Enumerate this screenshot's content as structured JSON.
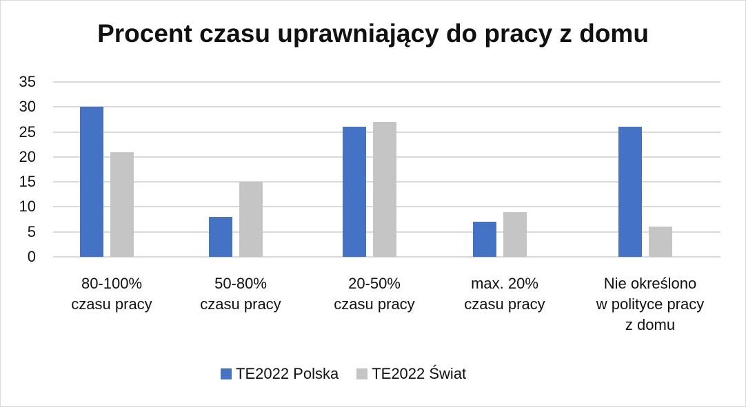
{
  "chart_data": {
    "type": "bar",
    "title": "Procent czasu uprawniający do pracy z domu",
    "categories": [
      [
        "80-100%",
        "czasu pracy"
      ],
      [
        "50-80%",
        "czasu pracy"
      ],
      [
        "20-50%",
        "czasu pracy"
      ],
      [
        "max. 20%",
        "czasu pracy"
      ],
      [
        "Nie określono",
        "w polityce pracy",
        "z domu"
      ]
    ],
    "series": [
      {
        "name": "TE2022 Polska",
        "color": "#4472c4",
        "values": [
          30,
          8,
          26,
          7,
          26
        ]
      },
      {
        "name": "TE2022 Świat",
        "color": "#c5c5c5",
        "values": [
          21,
          15,
          27,
          9,
          6
        ]
      }
    ],
    "yticks": [
      0,
      5,
      10,
      15,
      20,
      25,
      30,
      35
    ],
    "ylim": [
      0,
      35
    ],
    "xlabel": "",
    "ylabel": "",
    "grid": true,
    "legend_position": "bottom"
  }
}
